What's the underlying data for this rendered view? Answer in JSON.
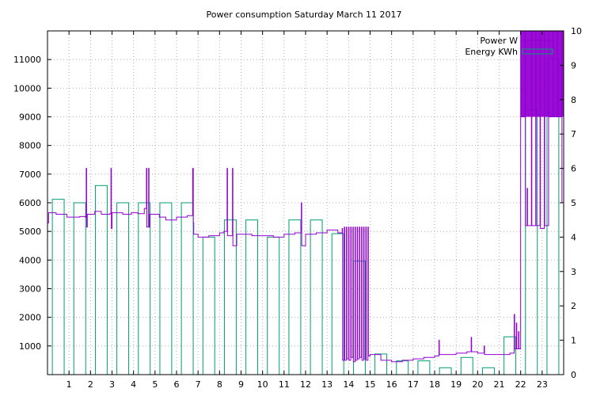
{
  "chart_data": {
    "type": "bar+line",
    "title": "Power consumption Saturday March 11 2017",
    "grid": true,
    "legend_position": "top-right",
    "x_axis": {
      "range": [
        0,
        24
      ],
      "ticks": [
        1,
        2,
        3,
        4,
        5,
        6,
        7,
        8,
        9,
        10,
        11,
        12,
        13,
        14,
        15,
        16,
        17,
        18,
        19,
        20,
        21,
        22,
        23
      ]
    },
    "y_left": {
      "range": [
        0,
        12000
      ],
      "ticks": [
        1000,
        2000,
        3000,
        4000,
        5000,
        6000,
        7000,
        8000,
        9000,
        10000,
        11000
      ]
    },
    "y_right": {
      "range": [
        0,
        10
      ],
      "ticks": [
        0,
        1,
        2,
        3,
        4,
        5,
        6,
        7,
        8,
        9,
        10
      ]
    },
    "series": [
      {
        "name": "Power W",
        "axis": "left",
        "color": "#9400d3",
        "style": "line",
        "points": [
          [
            0.0,
            5300
          ],
          [
            0.05,
            5650
          ],
          [
            0.4,
            5600
          ],
          [
            0.9,
            5500
          ],
          [
            1.5,
            5520
          ],
          [
            1.75,
            5500
          ],
          [
            1.8,
            7200
          ],
          [
            1.82,
            5150
          ],
          [
            1.85,
            5600
          ],
          [
            2.2,
            5700
          ],
          [
            2.5,
            5600
          ],
          [
            2.9,
            5620
          ],
          [
            2.95,
            7200
          ],
          [
            2.97,
            5100
          ],
          [
            3.0,
            5650
          ],
          [
            3.5,
            5600
          ],
          [
            3.9,
            5650
          ],
          [
            4.2,
            5620
          ],
          [
            4.5,
            5800
          ],
          [
            4.6,
            7200
          ],
          [
            4.62,
            5150
          ],
          [
            4.7,
            7200
          ],
          [
            4.72,
            5150
          ],
          [
            4.75,
            5600
          ],
          [
            5.2,
            5500
          ],
          [
            5.5,
            5400
          ],
          [
            6.0,
            5500
          ],
          [
            6.5,
            5550
          ],
          [
            6.75,
            7200
          ],
          [
            6.78,
            5300
          ],
          [
            6.8,
            4900
          ],
          [
            7.0,
            4800
          ],
          [
            7.5,
            4850
          ],
          [
            8.0,
            4950
          ],
          [
            8.2,
            5000
          ],
          [
            8.35,
            7200
          ],
          [
            8.37,
            4850
          ],
          [
            8.6,
            7200
          ],
          [
            8.62,
            4500
          ],
          [
            8.8,
            4900
          ],
          [
            9.5,
            4850
          ],
          [
            10.0,
            4850
          ],
          [
            10.5,
            4800
          ],
          [
            11.0,
            4900
          ],
          [
            11.5,
            4950
          ],
          [
            11.8,
            6000
          ],
          [
            11.82,
            4500
          ],
          [
            12.0,
            4900
          ],
          [
            12.5,
            4950
          ],
          [
            13.0,
            5050
          ],
          [
            13.5,
            4950
          ],
          [
            13.7,
            5100
          ],
          [
            13.72,
            500
          ],
          [
            13.8,
            5150
          ],
          [
            13.82,
            500
          ],
          [
            13.9,
            5150
          ],
          [
            13.92,
            550
          ],
          [
            14.0,
            5150
          ],
          [
            14.02,
            500
          ],
          [
            14.1,
            5150
          ],
          [
            14.12,
            600
          ],
          [
            14.2,
            5150
          ],
          [
            14.22,
            450
          ],
          [
            14.3,
            5150
          ],
          [
            14.32,
            500
          ],
          [
            14.4,
            5150
          ],
          [
            14.42,
            550
          ],
          [
            14.5,
            5150
          ],
          [
            14.52,
            600
          ],
          [
            14.6,
            5150
          ],
          [
            14.62,
            500
          ],
          [
            14.7,
            5150
          ],
          [
            14.72,
            550
          ],
          [
            14.8,
            5150
          ],
          [
            14.82,
            500
          ],
          [
            14.9,
            5150
          ],
          [
            14.92,
            650
          ],
          [
            15.0,
            700
          ],
          [
            15.5,
            500
          ],
          [
            16.0,
            450
          ],
          [
            16.5,
            500
          ],
          [
            17.0,
            550
          ],
          [
            17.5,
            600
          ],
          [
            18.0,
            650
          ],
          [
            18.2,
            1200
          ],
          [
            18.22,
            700
          ],
          [
            18.5,
            700
          ],
          [
            19.0,
            750
          ],
          [
            19.5,
            800
          ],
          [
            19.7,
            1300
          ],
          [
            19.72,
            800
          ],
          [
            20.0,
            750
          ],
          [
            20.3,
            1000
          ],
          [
            20.32,
            700
          ],
          [
            20.5,
            700
          ],
          [
            21.0,
            700
          ],
          [
            21.5,
            750
          ],
          [
            21.7,
            2100
          ],
          [
            21.72,
            900
          ],
          [
            21.8,
            1800
          ],
          [
            21.82,
            900
          ],
          [
            21.9,
            1500
          ],
          [
            21.92,
            900
          ],
          [
            22.0,
            12000
          ],
          [
            22.02,
            9000
          ],
          [
            22.2,
            12000
          ],
          [
            22.22,
            5200
          ],
          [
            22.3,
            6500
          ],
          [
            22.32,
            5200
          ],
          [
            22.5,
            12000
          ],
          [
            22.52,
            5200
          ],
          [
            22.7,
            12000
          ],
          [
            22.72,
            5200
          ],
          [
            22.9,
            12000
          ],
          [
            22.92,
            5100
          ],
          [
            23.1,
            12000
          ],
          [
            23.12,
            5200
          ],
          [
            23.3,
            12000
          ],
          [
            23.32,
            9000
          ],
          [
            23.5,
            12000
          ],
          [
            23.52,
            9000
          ],
          [
            23.7,
            12000
          ],
          [
            23.72,
            9000
          ],
          [
            23.9,
            12000
          ],
          [
            23.92,
            6000
          ],
          [
            24.0,
            6000
          ]
        ]
      },
      {
        "name": "Energy KWh",
        "axis": "right",
        "color": "#009e73",
        "style": "bars",
        "hours": [
          0,
          1,
          2,
          3,
          4,
          5,
          6,
          7,
          8,
          9,
          10,
          11,
          12,
          13,
          14,
          15,
          16,
          17,
          18,
          19,
          20,
          21,
          22,
          23
        ],
        "values": [
          5.1,
          5.0,
          5.5,
          5.0,
          5.0,
          5.0,
          5.0,
          4.0,
          4.5,
          4.5,
          4.0,
          4.5,
          4.5,
          4.1,
          3.3,
          0.6,
          0.4,
          0.4,
          0.2,
          0.5,
          0.2,
          1.1,
          7.7,
          9.2
        ]
      }
    ]
  }
}
